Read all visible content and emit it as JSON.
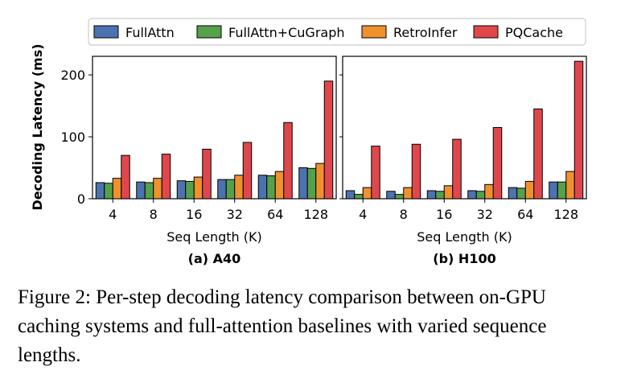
{
  "y_axis_label": "Decoding Latency (ms)",
  "legend": [
    {
      "label": "FullAttn",
      "color": "#4c72b0"
    },
    {
      "label": "FullAttn+CuGraph",
      "color": "#55a14a"
    },
    {
      "label": "RetroInfer",
      "color": "#f0912f"
    },
    {
      "label": "PQCache",
      "color": "#e0474c"
    }
  ],
  "chart_data": [
    {
      "type": "bar",
      "title": "(a) A40",
      "xlabel": "Seq Length (K)",
      "ylabel": "Decoding Latency (ms)",
      "ylim": [
        0,
        230
      ],
      "yticks": [
        0,
        100,
        200
      ],
      "categories": [
        "4",
        "8",
        "16",
        "32",
        "64",
        "128"
      ],
      "series": [
        {
          "name": "FullAttn",
          "values": [
            26,
            27,
            29,
            31,
            38,
            50
          ]
        },
        {
          "name": "FullAttn+CuGraph",
          "values": [
            25,
            26,
            28,
            31,
            37,
            49
          ]
        },
        {
          "name": "RetroInfer",
          "values": [
            33,
            33,
            35,
            38,
            44,
            57
          ]
        },
        {
          "name": "PQCache",
          "values": [
            70,
            72,
            80,
            91,
            123,
            190
          ]
        }
      ]
    },
    {
      "type": "bar",
      "title": "(b) H100",
      "xlabel": "Seq Length (K)",
      "ylabel": "",
      "ylim": [
        0,
        230
      ],
      "categories": [
        "4",
        "8",
        "16",
        "32",
        "64",
        "128"
      ],
      "series": [
        {
          "name": "FullAttn",
          "values": [
            13,
            12,
            13,
            13,
            18,
            27
          ]
        },
        {
          "name": "FullAttn+CuGraph",
          "values": [
            7,
            7,
            12,
            12,
            17,
            27
          ]
        },
        {
          "name": "RetroInfer",
          "values": [
            18,
            18,
            21,
            23,
            28,
            44
          ]
        },
        {
          "name": "PQCache",
          "values": [
            85,
            88,
            96,
            115,
            145,
            222
          ]
        }
      ]
    }
  ],
  "caption": "Figure 2: Per-step decoding latency comparison between on-GPU caching systems and full-attention baselines with varied sequence lengths."
}
